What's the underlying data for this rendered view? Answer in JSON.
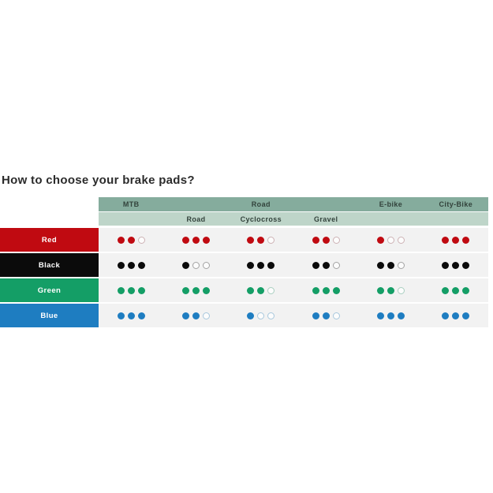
{
  "title": "How to choose your brake pads?",
  "table": {
    "top_headers": [
      "MTB",
      "Road",
      "E-bike",
      "City-Bike"
    ],
    "sub_headers": [
      "Road",
      "Cyclocross",
      "Gravel"
    ],
    "max_dots": 3,
    "colors": {
      "header_dark": "#85ac9d",
      "header_light": "#bed5c9",
      "header_text": "#32423b",
      "cell_background": "#f2f2f2"
    },
    "rows": [
      {
        "label": "Red",
        "color": "#c00a11",
        "empty_dot_border": "#cdb2b5",
        "ratings": [
          2,
          3,
          2,
          2,
          1,
          3
        ]
      },
      {
        "label": "Black",
        "color": "#0b0b0b",
        "empty_dot_border": "#a3a3a3",
        "ratings": [
          3,
          1,
          3,
          2,
          2,
          3
        ]
      },
      {
        "label": "Green",
        "color": "#149e66",
        "empty_dot_border": "#a9cfc0",
        "ratings": [
          3,
          3,
          2,
          3,
          2,
          3
        ]
      },
      {
        "label": "Blue",
        "color": "#1e7dc1",
        "empty_dot_border": "#a8c8dd",
        "ratings": [
          3,
          2,
          1,
          2,
          3,
          3
        ]
      }
    ]
  },
  "chart_data": {
    "type": "table",
    "title": "How to choose your brake pads?",
    "columns": [
      "MTB",
      "Road - Road",
      "Road - Cyclocross",
      "Road - Gravel",
      "E-bike",
      "City-Bike"
    ],
    "rows": [
      "Red",
      "Black",
      "Green",
      "Blue"
    ],
    "values": [
      [
        2,
        3,
        2,
        2,
        1,
        3
      ],
      [
        3,
        1,
        3,
        2,
        2,
        3
      ],
      [
        3,
        3,
        2,
        3,
        2,
        3
      ],
      [
        3,
        2,
        1,
        2,
        3,
        3
      ]
    ],
    "max_rating": 3,
    "legend": "filled dots = suitability rating out of 3"
  }
}
